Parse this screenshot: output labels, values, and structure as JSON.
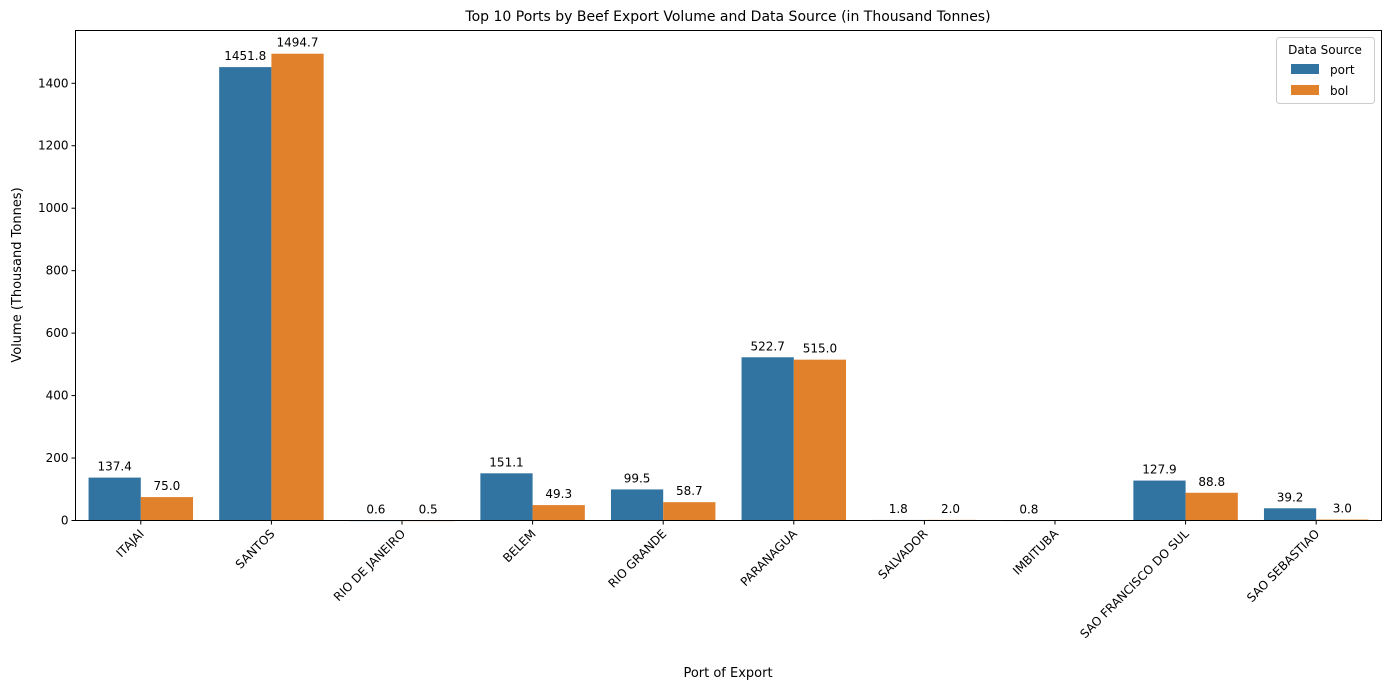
{
  "chart_data": {
    "type": "bar",
    "title": "Top 10 Ports by Beef Export Volume and Data Source (in Thousand Tonnes)",
    "xlabel": "Port of Export",
    "ylabel": "Volume (Thousand Tonnes)",
    "categories": [
      "ITAJAI",
      "SANTOS",
      "RIO DE JANEIRO",
      "BELEM",
      "RIO GRANDE",
      "PARANAGUA",
      "SALVADOR",
      "IMBITUBA",
      "SAO FRANCISCO DO SUL",
      "SAO SEBASTIAO"
    ],
    "series": [
      {
        "name": "port",
        "color": "#3274a1",
        "values": [
          137.4,
          1451.8,
          0.6,
          151.1,
          99.5,
          522.7,
          1.8,
          0.8,
          127.9,
          39.2
        ]
      },
      {
        "name": "bol",
        "color": "#e1812c",
        "values": [
          75.0,
          1494.7,
          0.5,
          49.3,
          58.7,
          515.0,
          2.0,
          null,
          88.8,
          3.0
        ]
      }
    ],
    "ylim": [
      0,
      1569
    ],
    "yticks": [
      0,
      200,
      400,
      600,
      800,
      1000,
      1200,
      1400
    ],
    "grid": false,
    "legend": {
      "title": "Data Source",
      "placement": "top-right"
    }
  }
}
